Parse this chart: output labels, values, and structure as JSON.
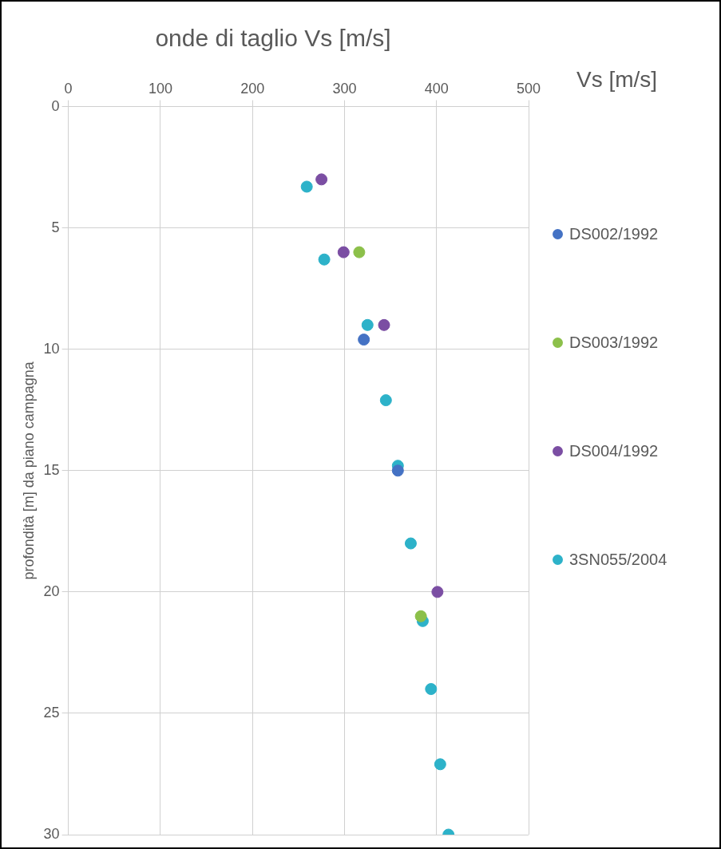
{
  "chart_data": {
    "type": "scatter",
    "title": "onde di taglio Vs [m/s]",
    "ylabel": "profondità [m] da piano campagna",
    "legend_title": "Vs [m/s]",
    "xlim": [
      0,
      500
    ],
    "xticks": [
      0,
      100,
      200,
      300,
      400,
      500
    ],
    "ylim": [
      30,
      0
    ],
    "yticks": [
      0,
      5,
      10,
      15,
      20,
      25,
      30
    ],
    "grid": true,
    "legend": "right",
    "marker": "circle",
    "series": [
      {
        "name": "DS002/1992",
        "color": "#4472c4",
        "x": [
          321,
          358
        ],
        "values": [
          9.6,
          15
        ]
      },
      {
        "name": "DS003/1992",
        "color": "#8cc04a",
        "x": [
          316,
          383
        ],
        "values": [
          6,
          21
        ]
      },
      {
        "name": "DS004/1992",
        "color": "#7b4ea3",
        "x": [
          275,
          299,
          343,
          401
        ],
        "values": [
          3,
          6,
          9,
          20
        ]
      },
      {
        "name": "3SN055/2004",
        "color": "#2db2c9",
        "x": [
          259,
          278,
          325,
          345,
          358,
          372,
          385,
          394,
          404,
          413
        ],
        "values": [
          3.3,
          6.3,
          9,
          12.1,
          14.8,
          18,
          21.2,
          24,
          27.1,
          30
        ]
      }
    ]
  }
}
